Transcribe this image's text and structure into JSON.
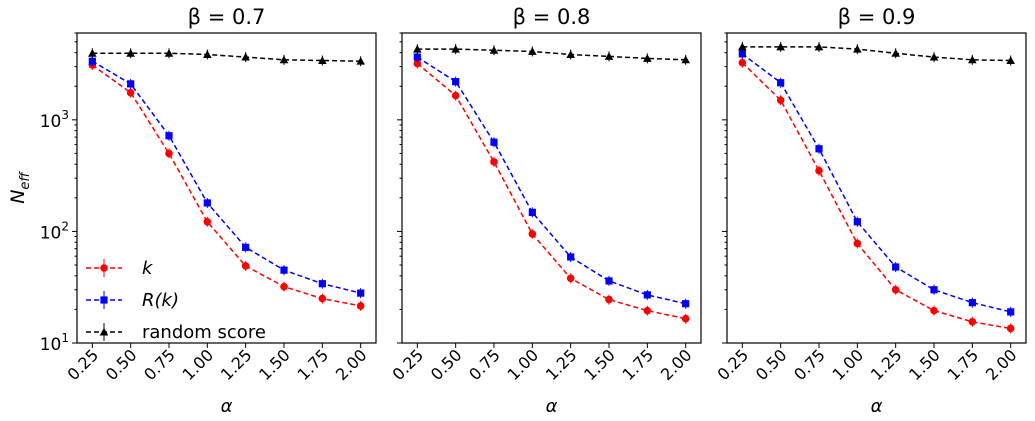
{
  "figure": {
    "ylabel_base": "N",
    "ylabel_sub": "eff"
  },
  "legend": [
    {
      "label": "k",
      "italic": true,
      "color": "#ff0000",
      "marker": "circle"
    },
    {
      "label": "R(k)",
      "italic": true,
      "color": "#0000ff",
      "marker": "square"
    },
    {
      "label": "random score",
      "italic": false,
      "color": "#000000",
      "marker": "triangle"
    }
  ],
  "chart_data": [
    {
      "type": "line",
      "title": "β = 0.7",
      "xlabel": "α",
      "ylabel": "N_eff",
      "yscale": "log",
      "ylim": [
        10,
        6000
      ],
      "y_ticks": [
        {
          "value": 10,
          "base": "10",
          "exp": "1"
        },
        {
          "value": 100,
          "base": "10",
          "exp": "2"
        },
        {
          "value": 1000,
          "base": "10",
          "exp": "3"
        }
      ],
      "x": [
        0.25,
        0.5,
        0.75,
        1.0,
        1.25,
        1.5,
        1.75,
        2.0
      ],
      "x_tick_labels": [
        "0.25",
        "0.50",
        "0.75",
        "1.00",
        "1.25",
        "1.50",
        "1.75",
        "2.00"
      ],
      "series": [
        {
          "name": "k",
          "color": "#ff0000",
          "marker": "circle",
          "values": [
            3100,
            1750,
            500,
            122,
            49,
            32,
            25,
            21.5
          ]
        },
        {
          "name": "R(k)",
          "color": "#0000ff",
          "marker": "square",
          "values": [
            3350,
            2100,
            720,
            180,
            72,
            45,
            34,
            28
          ]
        },
        {
          "name": "random score",
          "color": "#000000",
          "marker": "triangle",
          "values": [
            3950,
            3950,
            3950,
            3850,
            3650,
            3450,
            3400,
            3350
          ]
        }
      ]
    },
    {
      "type": "line",
      "title": "β = 0.8",
      "xlabel": "α",
      "ylabel": "",
      "yscale": "log",
      "ylim": [
        10,
        6000
      ],
      "y_ticks": [],
      "x": [
        0.25,
        0.5,
        0.75,
        1.0,
        1.25,
        1.5,
        1.75,
        2.0
      ],
      "x_tick_labels": [
        "0.25",
        "0.50",
        "0.75",
        "1.00",
        "1.25",
        "1.50",
        "1.75",
        "2.00"
      ],
      "series": [
        {
          "name": "k",
          "color": "#ff0000",
          "marker": "circle",
          "values": [
            3200,
            1650,
            420,
            95,
            38,
            24.5,
            19.5,
            16.5
          ]
        },
        {
          "name": "R(k)",
          "color": "#0000ff",
          "marker": "square",
          "values": [
            3650,
            2200,
            630,
            148,
            59,
            36,
            27,
            22.5
          ]
        },
        {
          "name": "random score",
          "color": "#000000",
          "marker": "triangle",
          "values": [
            4300,
            4300,
            4200,
            4100,
            3850,
            3700,
            3550,
            3450
          ]
        }
      ]
    },
    {
      "type": "line",
      "title": "β = 0.9",
      "xlabel": "α",
      "ylabel": "",
      "yscale": "log",
      "ylim": [
        10,
        6000
      ],
      "y_ticks": [],
      "x": [
        0.25,
        0.5,
        0.75,
        1.0,
        1.25,
        1.5,
        1.75,
        2.0
      ],
      "x_tick_labels": [
        "0.25",
        "0.50",
        "0.75",
        "1.00",
        "1.25",
        "1.50",
        "1.75",
        "2.00"
      ],
      "series": [
        {
          "name": "k",
          "color": "#ff0000",
          "marker": "circle",
          "values": [
            3250,
            1500,
            350,
            78,
            30,
            19.5,
            15.5,
            13.5
          ]
        },
        {
          "name": "R(k)",
          "color": "#0000ff",
          "marker": "square",
          "values": [
            3900,
            2150,
            550,
            122,
            48,
            30,
            23,
            19
          ]
        },
        {
          "name": "random score",
          "color": "#000000",
          "marker": "triangle",
          "values": [
            4500,
            4500,
            4500,
            4300,
            3950,
            3650,
            3450,
            3400
          ]
        }
      ]
    }
  ]
}
